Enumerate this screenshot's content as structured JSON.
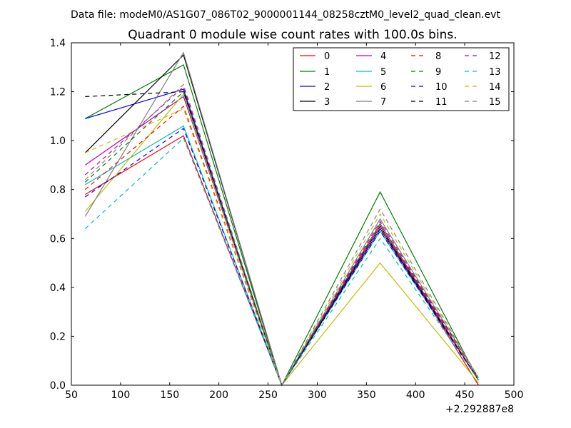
{
  "chart_data": {
    "type": "line",
    "suptitle": "Data file: modeM0/AS1G07_086T02_9000001144_08258cztM0_level2_quad_clean.evt",
    "title": "Quadrant 0 module wise count rates with 100.0s bins.",
    "xlabel": "",
    "ylabel": "",
    "x_offset_label": "+2.292887e8",
    "xlim": [
      50,
      500
    ],
    "ylim": [
      0.0,
      1.4
    ],
    "xticks": [
      "50",
      "100",
      "150",
      "200",
      "250",
      "300",
      "350",
      "400",
      "450",
      "500"
    ],
    "yticks": [
      "0.0",
      "0.2",
      "0.4",
      "0.6",
      "0.8",
      "1.0",
      "1.2",
      "1.4"
    ],
    "grid": false,
    "legend_position": "top-right",
    "legend_columns": 4,
    "x": [
      64,
      164,
      264,
      364,
      464
    ],
    "series": [
      {
        "name": "0",
        "color": "#ff0000",
        "dashed": false,
        "values": [
          0.78,
          1.02,
          0.0,
          0.65,
          0.0
        ]
      },
      {
        "name": "1",
        "color": "#008000",
        "dashed": false,
        "values": [
          1.09,
          1.31,
          0.0,
          0.79,
          0.02
        ]
      },
      {
        "name": "2",
        "color": "#0000ff",
        "dashed": false,
        "values": [
          1.09,
          1.21,
          0.0,
          0.64,
          0.02
        ]
      },
      {
        "name": "3",
        "color": "#000000",
        "dashed": false,
        "values": [
          0.95,
          1.35,
          0.0,
          0.65,
          0.02
        ]
      },
      {
        "name": "4",
        "color": "#bf00bf",
        "dashed": false,
        "values": [
          0.9,
          1.18,
          0.0,
          0.66,
          0.02
        ]
      },
      {
        "name": "5",
        "color": "#00bfbf",
        "dashed": false,
        "values": [
          0.82,
          1.06,
          0.0,
          0.63,
          0.02
        ]
      },
      {
        "name": "6",
        "color": "#bfbf00",
        "dashed": false,
        "values": [
          0.71,
          1.19,
          0.0,
          0.5,
          0.01
        ]
      },
      {
        "name": "7",
        "color": "#808080",
        "dashed": false,
        "values": [
          0.69,
          1.36,
          0.0,
          0.68,
          0.03
        ]
      },
      {
        "name": "8",
        "color": "#ff0000",
        "dashed": true,
        "values": [
          0.8,
          1.14,
          0.0,
          0.65,
          0.02
        ]
      },
      {
        "name": "9",
        "color": "#008000",
        "dashed": true,
        "values": [
          0.83,
          1.2,
          0.0,
          0.66,
          0.03
        ]
      },
      {
        "name": "10",
        "color": "#0000ff",
        "dashed": true,
        "values": [
          0.77,
          1.05,
          0.0,
          0.63,
          0.02
        ]
      },
      {
        "name": "11",
        "color": "#000000",
        "dashed": true,
        "values": [
          1.18,
          1.2,
          0.0,
          0.64,
          0.02
        ]
      },
      {
        "name": "12",
        "color": "#bf00bf",
        "dashed": true,
        "values": [
          0.86,
          1.22,
          0.0,
          0.67,
          0.03
        ]
      },
      {
        "name": "13",
        "color": "#00bfbf",
        "dashed": true,
        "values": [
          0.64,
          1.01,
          0.0,
          0.6,
          0.02
        ]
      },
      {
        "name": "14",
        "color": "#bfbf00",
        "dashed": true,
        "values": [
          0.95,
          1.13,
          0.0,
          0.7,
          0.03
        ]
      },
      {
        "name": "15",
        "color": "#808080",
        "dashed": true,
        "values": [
          0.84,
          1.23,
          0.0,
          0.72,
          0.03
        ]
      }
    ]
  }
}
